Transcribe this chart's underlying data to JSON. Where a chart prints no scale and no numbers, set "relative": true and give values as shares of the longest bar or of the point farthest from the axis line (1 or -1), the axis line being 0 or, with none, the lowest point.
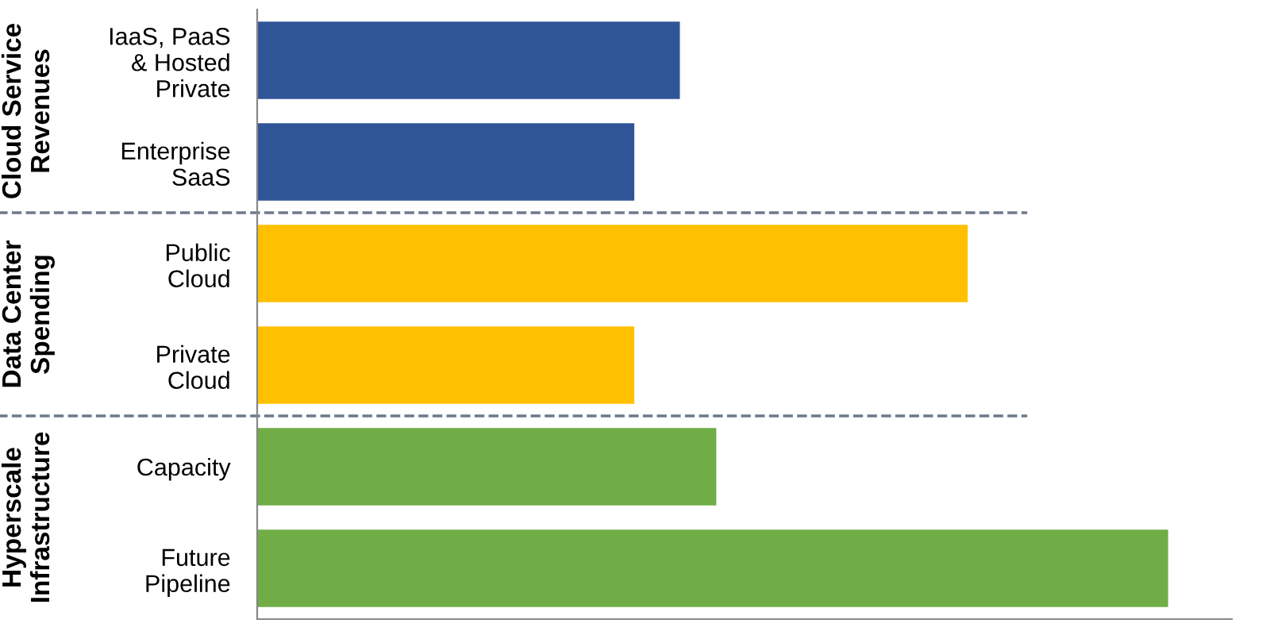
{
  "chart_data": {
    "type": "bar",
    "orientation": "horizontal",
    "relative": true,
    "categories": [
      "IaaS, PaaS\n& Hosted\nPrivate",
      "Enterprise\nSaaS",
      "Public\nCloud",
      "Private\nCloud",
      "Capacity",
      "Future\nPipeline"
    ],
    "values": [
      0.464,
      0.414,
      0.78,
      0.414,
      0.504,
      1.0
    ],
    "colors": [
      "#2f5597",
      "#2f5597",
      "#ffc000",
      "#ffc000",
      "#70ad47",
      "#70ad47"
    ],
    "annotations": [
      "Cloud Service\nRevenues",
      "Data Center\nSpending",
      "Hyperscale\nInfrastructure"
    ]
  }
}
